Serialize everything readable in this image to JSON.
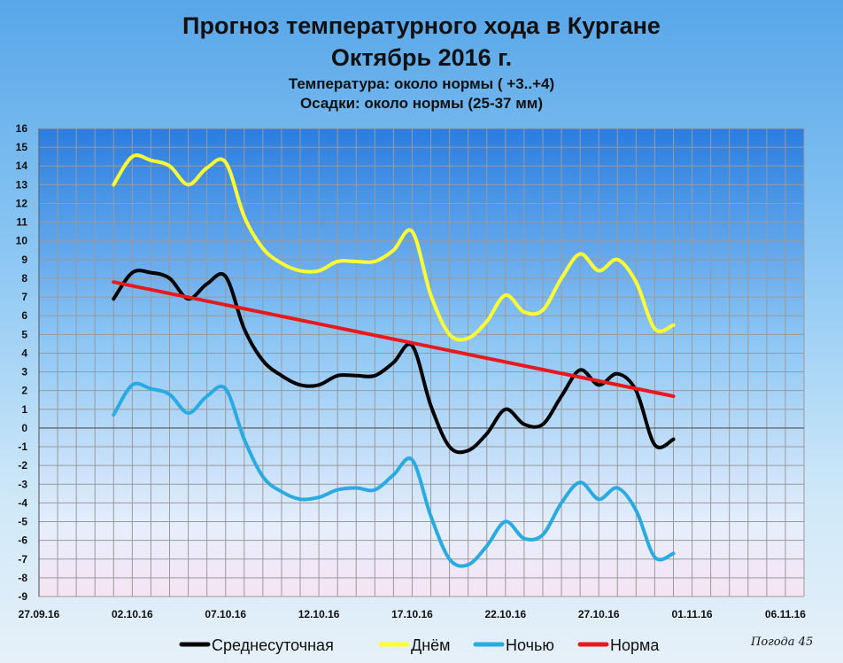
{
  "chart_data": {
    "type": "line",
    "title": "Прогноз температурного хода в Кургане",
    "subtitle": "Октябрь 2016 г.",
    "notes": [
      "Температура: около нормы ( +3..+4)",
      "Осадки: около нормы (25-37 мм)"
    ],
    "x_tick_labels": [
      "27.09.16",
      "02.10.16",
      "07.10.16",
      "12.10.16",
      "17.10.16",
      "22.10.16",
      "27.10.16",
      "01.11.16",
      "06.11.16"
    ],
    "xlim": [
      "27.09.16",
      "07.11.16"
    ],
    "ylim": [
      -9,
      16
    ],
    "y_ticks": [
      -9,
      -8,
      -7,
      -6,
      -5,
      -4,
      -3,
      -2,
      -1,
      0,
      1,
      2,
      3,
      4,
      5,
      6,
      7,
      8,
      9,
      10,
      11,
      12,
      13,
      14,
      15,
      16
    ],
    "grid": true,
    "legend_position": "bottom",
    "x": [
      "01.10.16",
      "02.10.16",
      "03.10.16",
      "04.10.16",
      "05.10.16",
      "06.10.16",
      "07.10.16",
      "08.10.16",
      "09.10.16",
      "10.10.16",
      "11.10.16",
      "12.10.16",
      "13.10.16",
      "14.10.16",
      "15.10.16",
      "16.10.16",
      "17.10.16",
      "18.10.16",
      "19.10.16",
      "20.10.16",
      "21.10.16",
      "22.10.16",
      "23.10.16",
      "24.10.16",
      "25.10.16",
      "26.10.16",
      "27.10.16",
      "28.10.16",
      "29.10.16",
      "30.10.16",
      "31.10.16"
    ],
    "series": [
      {
        "name": "Среднесуточная",
        "color": "#000000",
        "values": [
          6.9,
          8.3,
          8.3,
          8.0,
          6.9,
          7.7,
          8.1,
          5.3,
          3.6,
          2.8,
          2.3,
          2.3,
          2.8,
          2.8,
          2.8,
          3.5,
          4.4,
          1.2,
          -1.0,
          -1.2,
          -0.3,
          1.0,
          0.2,
          0.2,
          1.7,
          3.1,
          2.3,
          2.9,
          2.0,
          -0.9,
          -0.6
        ]
      },
      {
        "name": "Днём",
        "color": "#ffff33",
        "values": [
          13.0,
          14.5,
          14.3,
          14.0,
          13.0,
          13.9,
          14.2,
          11.3,
          9.6,
          8.8,
          8.4,
          8.4,
          8.9,
          8.9,
          8.9,
          9.5,
          10.5,
          7.1,
          5.0,
          4.8,
          5.7,
          7.1,
          6.2,
          6.3,
          8.0,
          9.3,
          8.4,
          9.0,
          7.8,
          5.3,
          5.5
        ]
      },
      {
        "name": "Ночью",
        "color": "#29abe2",
        "values": [
          0.7,
          2.3,
          2.1,
          1.8,
          0.8,
          1.7,
          2.1,
          -0.6,
          -2.6,
          -3.4,
          -3.8,
          -3.7,
          -3.3,
          -3.2,
          -3.3,
          -2.5,
          -1.7,
          -4.7,
          -7.0,
          -7.3,
          -6.3,
          -5.0,
          -5.9,
          -5.7,
          -4.0,
          -2.9,
          -3.8,
          -3.2,
          -4.4,
          -6.9,
          -6.7
        ]
      },
      {
        "name": "Норма",
        "color": "#e8191d",
        "x": [
          "01.10.16",
          "31.10.16"
        ],
        "values": [
          7.8,
          1.7
        ]
      }
    ]
  },
  "watermark": "Погода 45"
}
